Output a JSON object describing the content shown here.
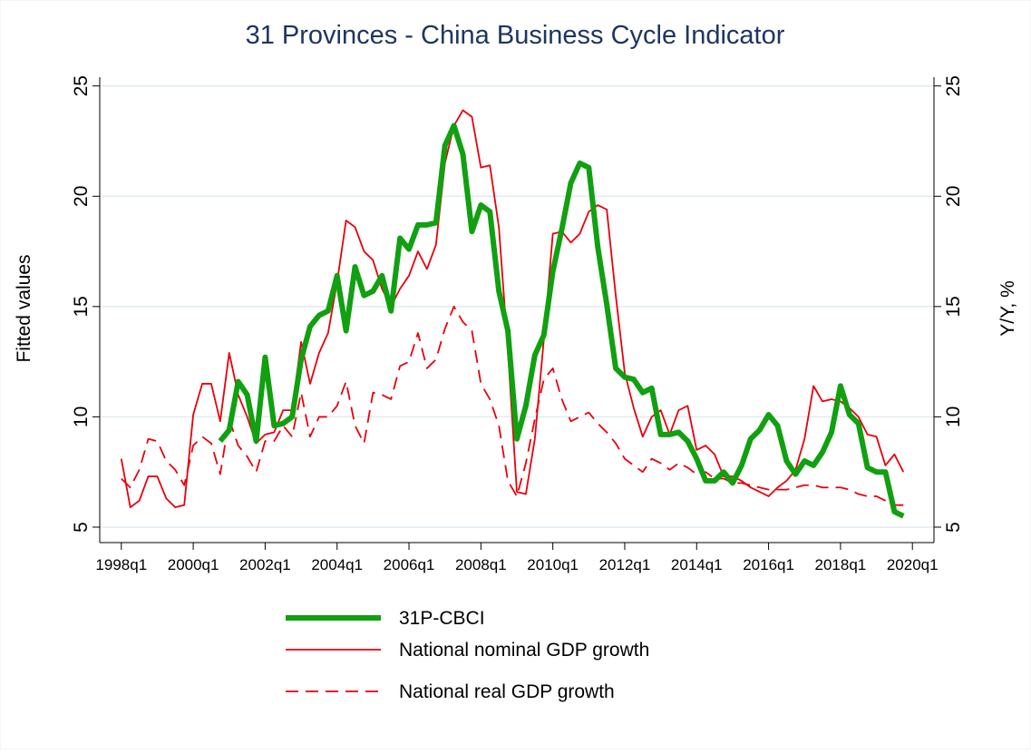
{
  "chart_data": {
    "type": "line",
    "title": "31 Provinces - China Business Cycle Indicator",
    "y_label": "Fitted values",
    "y2_label": "Y/Y, %",
    "x": [
      1998,
      1998.25,
      1998.5,
      1998.75,
      1999,
      1999.25,
      1999.5,
      1999.75,
      2000,
      2000.25,
      2000.5,
      2000.75,
      2001,
      2001.25,
      2001.5,
      2001.75,
      2002,
      2002.25,
      2002.5,
      2002.75,
      2003,
      2003.25,
      2003.5,
      2003.75,
      2004,
      2004.25,
      2004.5,
      2004.75,
      2005,
      2005.25,
      2005.5,
      2005.75,
      2006,
      2006.25,
      2006.5,
      2006.75,
      2007,
      2007.25,
      2007.5,
      2007.75,
      2008,
      2008.25,
      2008.5,
      2008.75,
      2009,
      2009.25,
      2009.5,
      2009.75,
      2010,
      2010.25,
      2010.5,
      2010.75,
      2011,
      2011.25,
      2011.5,
      2011.75,
      2012,
      2012.25,
      2012.5,
      2012.75,
      2013,
      2013.25,
      2013.5,
      2013.75,
      2014,
      2014.25,
      2014.5,
      2014.75,
      2015,
      2015.25,
      2015.5,
      2015.75,
      2016,
      2016.25,
      2016.5,
      2016.75,
      2017,
      2017.25,
      2017.5,
      2017.75,
      2018,
      2018.25,
      2018.5,
      2018.75,
      2019,
      2019.25,
      2019.5,
      2019.75
    ],
    "xlim": [
      1997.4,
      2020.6
    ],
    "xticks": [
      {
        "value": 1998,
        "label": "1998q1"
      },
      {
        "value": 2000,
        "label": "2000q1"
      },
      {
        "value": 2002,
        "label": "2002q1"
      },
      {
        "value": 2004,
        "label": "2004q1"
      },
      {
        "value": 2006,
        "label": "2006q1"
      },
      {
        "value": 2008,
        "label": "2008q1"
      },
      {
        "value": 2010,
        "label": "2010q1"
      },
      {
        "value": 2012,
        "label": "2012q1"
      },
      {
        "value": 2014,
        "label": "2014q1"
      },
      {
        "value": 2016,
        "label": "2016q1"
      },
      {
        "value": 2018,
        "label": "2018q1"
      },
      {
        "value": 2020,
        "label": "2020q1"
      }
    ],
    "ylim": [
      4.3,
      25.4
    ],
    "yticks": [
      5,
      10,
      15,
      20,
      25
    ],
    "y2lim": [
      4.3,
      25.4
    ],
    "y2ticks": [
      5,
      10,
      15,
      20,
      25
    ],
    "grid": true,
    "legend_position": "bottom",
    "series": [
      {
        "name": "31P-CBCI",
        "color": "#10a010",
        "line_width": 6,
        "line_style": "solid",
        "values": [
          null,
          null,
          null,
          null,
          null,
          null,
          null,
          null,
          null,
          null,
          null,
          8.9,
          9.4,
          11.6,
          11.0,
          8.9,
          12.7,
          9.6,
          9.7,
          10.0,
          12.6,
          14.1,
          14.6,
          14.8,
          16.4,
          13.9,
          16.8,
          15.5,
          15.7,
          16.4,
          14.8,
          18.1,
          17.6,
          18.7,
          18.7,
          18.8,
          22.3,
          23.2,
          21.9,
          18.4,
          19.6,
          19.3,
          15.7,
          13.9,
          9.0,
          10.5,
          12.8,
          13.7,
          16.6,
          18.5,
          20.6,
          21.5,
          21.3,
          17.7,
          15.1,
          12.2,
          11.8,
          11.7,
          11.1,
          11.3,
          9.2,
          9.2,
          9.3,
          8.9,
          8.1,
          7.1,
          7.1,
          7.5,
          7.0,
          7.8,
          9.0,
          9.4,
          10.1,
          9.6,
          8.0,
          7.4,
          8.0,
          7.8,
          8.4,
          9.3,
          11.4,
          10.1,
          9.7,
          7.7,
          7.5,
          7.5,
          5.7,
          5.5
        ]
      },
      {
        "name": "National nominal GDP growth",
        "color": "#e8000b",
        "line_width": 1.8,
        "line_style": "solid",
        "axis": "y2",
        "values": [
          8.1,
          5.9,
          6.2,
          7.3,
          7.3,
          6.3,
          5.9,
          6.0,
          10.1,
          11.5,
          11.5,
          9.8,
          12.9,
          11.0,
          10.0,
          8.8,
          9.2,
          9.3,
          10.3,
          10.3,
          13.4,
          11.5,
          12.9,
          13.8,
          16.1,
          18.9,
          18.6,
          17.5,
          17.1,
          15.8,
          15.0,
          15.8,
          16.4,
          17.5,
          16.7,
          17.8,
          21.5,
          23.2,
          23.9,
          23.6,
          21.3,
          21.4,
          18.6,
          13.0,
          6.6,
          6.5,
          9.0,
          13.5,
          18.3,
          18.4,
          17.9,
          18.3,
          19.3,
          19.6,
          19.4,
          15.5,
          12.0,
          10.4,
          9.1,
          10.0,
          10.3,
          9.2,
          10.3,
          10.5,
          8.5,
          8.7,
          8.3,
          7.3,
          7.3,
          7.1,
          6.8,
          6.6,
          6.4,
          6.8,
          7.1,
          7.6,
          9.0,
          11.4,
          10.7,
          10.8,
          10.7,
          10.4,
          10.0,
          9.2,
          9.1,
          7.8,
          8.3,
          7.5
        ]
      },
      {
        "name": "National real GDP growth",
        "color": "#e8000b",
        "line_width": 1.8,
        "line_style": "dashed",
        "axis": "y2",
        "values": [
          7.2,
          6.8,
          7.6,
          9.0,
          8.9,
          8.0,
          7.6,
          6.9,
          8.7,
          9.1,
          8.8,
          7.4,
          9.9,
          8.7,
          8.2,
          7.5,
          8.9,
          8.9,
          9.6,
          9.1,
          11.1,
          9.1,
          10.0,
          10.0,
          10.5,
          11.6,
          9.6,
          8.8,
          11.1,
          11.0,
          10.8,
          12.3,
          12.5,
          13.8,
          12.2,
          12.6,
          14.0,
          15.0,
          14.3,
          13.9,
          11.5,
          10.8,
          9.6,
          7.1,
          6.4,
          7.9,
          9.9,
          11.7,
          12.2,
          10.8,
          9.8,
          10.0,
          10.2,
          9.7,
          9.3,
          8.8,
          8.1,
          7.8,
          7.5,
          8.1,
          7.9,
          7.6,
          7.9,
          7.7,
          7.4,
          7.5,
          7.2,
          7.2,
          7.0,
          7.0,
          6.9,
          6.8,
          6.7,
          6.7,
          6.7,
          6.8,
          6.9,
          6.9,
          6.8,
          6.8,
          6.8,
          6.7,
          6.5,
          6.4,
          6.4,
          6.2,
          6.0,
          6.0
        ]
      }
    ]
  }
}
